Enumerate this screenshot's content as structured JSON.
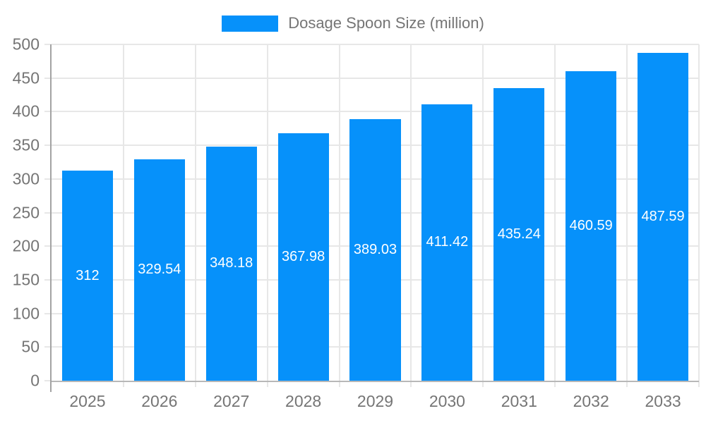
{
  "chart_data": {
    "type": "bar",
    "title": "Dosage Spoon Size (million)",
    "categories": [
      "2025",
      "2026",
      "2027",
      "2028",
      "2029",
      "2030",
      "2031",
      "2032",
      "2033"
    ],
    "values": [
      312,
      329.54,
      348.18,
      367.98,
      389.03,
      411.42,
      435.24,
      460.59,
      487.59
    ],
    "value_labels": [
      "312",
      "329.54",
      "348.18",
      "367.98",
      "389.03",
      "411.42",
      "435.24",
      "460.59",
      "487.59"
    ],
    "series": [
      {
        "name": "Dosage Spoon Size (million)",
        "values": [
          312,
          329.54,
          348.18,
          367.98,
          389.03,
          411.42,
          435.24,
          460.59,
          487.59
        ]
      }
    ],
    "xlabel": "",
    "ylabel": "",
    "ylim": [
      0,
      500
    ],
    "yticks": [
      0,
      50,
      100,
      150,
      200,
      250,
      300,
      350,
      400,
      450,
      500
    ],
    "grid": true,
    "legend_position": "top-center",
    "colors": {
      "bar": "#0691fa",
      "grid": "#e7e7e7",
      "axis_line": "#a3a3a3",
      "baseline": "#b8b8b8",
      "tick_text": "#757575",
      "value_text": "#ffffff",
      "background": "#ffffff"
    }
  }
}
